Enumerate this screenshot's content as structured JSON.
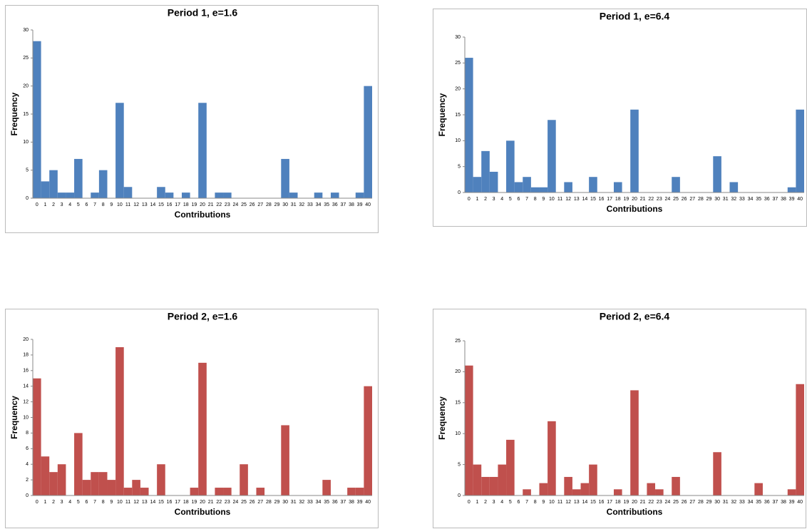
{
  "chart_data": [
    {
      "type": "bar",
      "title": "Period 1, e=1.6",
      "x_label": "Contributions",
      "y_label": "Frequency",
      "color": "#4f81bd",
      "categories": [
        "0",
        "1",
        "2",
        "3",
        "4",
        "5",
        "6",
        "7",
        "8",
        "9",
        "10",
        "11",
        "12",
        "13",
        "14",
        "15",
        "16",
        "17",
        "18",
        "19",
        "20",
        "21",
        "22",
        "23",
        "24",
        "25",
        "26",
        "27",
        "28",
        "29",
        "30",
        "31",
        "32",
        "33",
        "34",
        "35",
        "36",
        "37",
        "38",
        "39",
        "40"
      ],
      "values": [
        28,
        3,
        5,
        1,
        1,
        7,
        0,
        1,
        5,
        0,
        17,
        2,
        0,
        0,
        0,
        2,
        1,
        0,
        1,
        0,
        17,
        0,
        1,
        1,
        0,
        0,
        0,
        0,
        0,
        0,
        7,
        1,
        0,
        0,
        1,
        0,
        1,
        0,
        0,
        1,
        20
      ],
      "ylim": [
        0,
        30
      ],
      "yticks": [
        0,
        5,
        10,
        15,
        20,
        25,
        30
      ]
    },
    {
      "type": "bar",
      "title": "Period 1, e=6.4",
      "x_label": "Contributions",
      "y_label": "Frequency",
      "color": "#4f81bd",
      "categories": [
        "0",
        "1",
        "2",
        "3",
        "4",
        "5",
        "6",
        "7",
        "8",
        "9",
        "10",
        "11",
        "12",
        "13",
        "14",
        "15",
        "16",
        "17",
        "18",
        "19",
        "20",
        "21",
        "22",
        "23",
        "24",
        "25",
        "26",
        "27",
        "28",
        "29",
        "30",
        "31",
        "32",
        "33",
        "34",
        "35",
        "36",
        "37",
        "38",
        "39",
        "40"
      ],
      "values": [
        26,
        3,
        8,
        4,
        0,
        10,
        2,
        3,
        1,
        1,
        14,
        0,
        2,
        0,
        0,
        3,
        0,
        0,
        2,
        0,
        16,
        0,
        0,
        0,
        0,
        3,
        0,
        0,
        0,
        0,
        7,
        0,
        2,
        0,
        0,
        0,
        0,
        0,
        0,
        1,
        16
      ],
      "ylim": [
        0,
        30
      ],
      "yticks": [
        0,
        5,
        10,
        15,
        20,
        25,
        30
      ]
    },
    {
      "type": "bar",
      "title": "Period 2, e=1.6",
      "x_label": "Contributions",
      "y_label": "Frequency",
      "color": "#c0504d",
      "categories": [
        "0",
        "1",
        "2",
        "3",
        "4",
        "5",
        "6",
        "7",
        "8",
        "9",
        "10",
        "11",
        "12",
        "13",
        "14",
        "15",
        "16",
        "17",
        "18",
        "19",
        "20",
        "21",
        "22",
        "23",
        "24",
        "25",
        "26",
        "27",
        "28",
        "29",
        "30",
        "31",
        "32",
        "33",
        "34",
        "35",
        "36",
        "37",
        "38",
        "39",
        "40"
      ],
      "values": [
        15,
        5,
        3,
        4,
        0,
        8,
        2,
        3,
        3,
        2,
        19,
        1,
        2,
        1,
        0,
        4,
        0,
        0,
        0,
        1,
        17,
        0,
        1,
        1,
        0,
        4,
        0,
        1,
        0,
        0,
        9,
        0,
        0,
        0,
        0,
        2,
        0,
        0,
        1,
        1,
        14
      ],
      "ylim": [
        0,
        20
      ],
      "yticks": [
        0,
        2,
        4,
        6,
        8,
        10,
        12,
        14,
        16,
        18,
        20
      ]
    },
    {
      "type": "bar",
      "title": "Period 2, e=6.4",
      "x_label": "Contributions",
      "y_label": "Frequency",
      "color": "#c0504d",
      "categories": [
        "0",
        "1",
        "2",
        "3",
        "4",
        "5",
        "6",
        "7",
        "8",
        "9",
        "10",
        "11",
        "12",
        "13",
        "14",
        "15",
        "16",
        "17",
        "18",
        "19",
        "20",
        "21",
        "22",
        "23",
        "24",
        "25",
        "26",
        "27",
        "28",
        "29",
        "30",
        "31",
        "32",
        "33",
        "34",
        "35",
        "36",
        "37",
        "38",
        "39",
        "40"
      ],
      "values": [
        21,
        5,
        3,
        3,
        5,
        9,
        0,
        1,
        0,
        2,
        12,
        0,
        3,
        1,
        2,
        5,
        0,
        0,
        1,
        0,
        17,
        0,
        2,
        1,
        0,
        3,
        0,
        0,
        0,
        0,
        7,
        0,
        0,
        0,
        0,
        2,
        0,
        0,
        0,
        1,
        18
      ],
      "ylim": [
        0,
        25
      ],
      "yticks": [
        0,
        5,
        10,
        15,
        20,
        25
      ]
    }
  ]
}
